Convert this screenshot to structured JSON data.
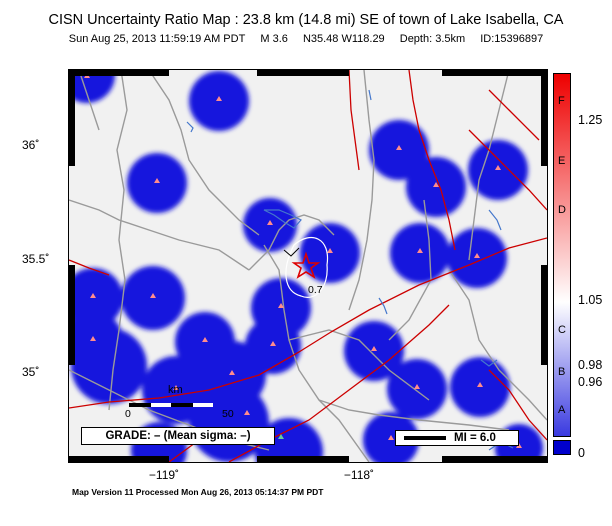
{
  "header": {
    "title": "CISN Uncertainty Ratio Map : 23.8 km (14.8 mi) SE of town of Lake Isabella, CA",
    "date": "Sun Aug 25, 2013 11:59:19 AM PDT",
    "magnitude": "M 3.6",
    "coords": "N35.48 W118.29",
    "depth": "Depth: 3.5km",
    "id": "ID:15396897"
  },
  "axes": {
    "lat_ticks": [
      "36˚",
      "35.5˚",
      "35˚"
    ],
    "lon_ticks": [
      "−119˚",
      "−118˚"
    ]
  },
  "colorbar": {
    "letters": [
      "F",
      "E",
      "D",
      "C",
      "B",
      "A"
    ],
    "values": [
      "1.25",
      "1.05",
      "0.98",
      "0.96",
      "0"
    ],
    "colors": {
      "top": "#ee0000",
      "white": "#ffffff",
      "bottom": "#0000cc"
    }
  },
  "legend": {
    "grade": "GRADE: – (Mean sigma: –)",
    "mi": "MI = 6.0",
    "km_label": "km",
    "km_start": "0",
    "km_end": "50"
  },
  "map": {
    "contour_label": "0.7",
    "colors": {
      "land": "#f1f1f1",
      "uncertainty": "#1111dd",
      "faults": "#cc0000",
      "roads": "#999999",
      "water": "#4477cc",
      "stations": "#ff8888",
      "epicenter": "#dd0000"
    }
  },
  "footer": {
    "text": "Map Version 11 Processed Mon Aug 26, 2013 05:14:37 PM PDT"
  }
}
